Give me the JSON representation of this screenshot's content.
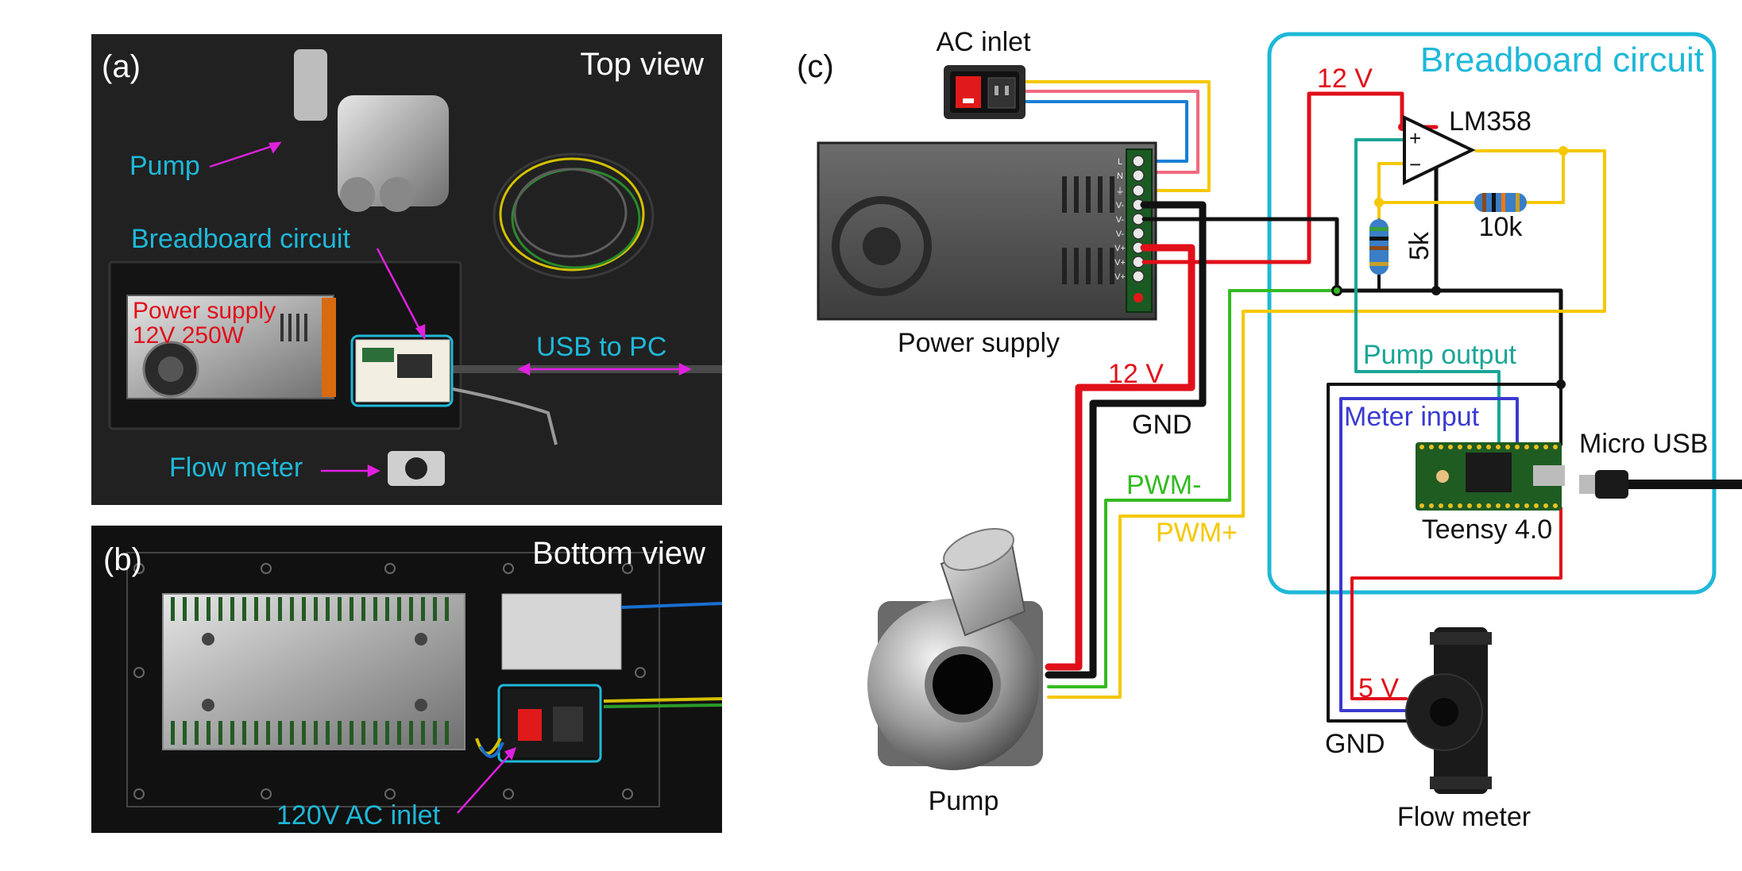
{
  "panel_a": {
    "tag": "(a)",
    "view_title": "Top view",
    "labels": {
      "pump": "Pump",
      "breadboard": "Breadboard circuit",
      "power_supply_line1": "Power supply",
      "power_supply_line2": "12V 250W",
      "usb": "USB to PC",
      "flow_meter": "Flow meter"
    }
  },
  "panel_b": {
    "tag": "(b)",
    "view_title": "Bottom view",
    "labels": {
      "ac_inlet": "120V AC inlet"
    }
  },
  "panel_c": {
    "tag": "(c)",
    "components": {
      "ac_inlet": "AC inlet",
      "power_supply": "Power supply",
      "breadboard_title": "Breadboard circuit",
      "opamp": "LM358",
      "opamp_plus": "+",
      "opamp_minus": "−",
      "resistor_5k": "5k",
      "resistor_10k": "10k",
      "teensy": "Teensy 4.0",
      "micro_usb": "Micro USB",
      "pump": "Pump",
      "flow_meter": "Flow meter"
    },
    "terminals": [
      "L",
      "N",
      "⏚",
      "V-",
      "V-",
      "V-",
      "V+",
      "V+",
      "V+"
    ],
    "wire_labels": {
      "v12_top": "12 V",
      "v12_left": "12 V",
      "gnd_left": "GND",
      "pwm_minus": "PWM-",
      "pwm_plus": "PWM+",
      "pump_output": "Pump output",
      "meter_input": "Meter input",
      "v5": "5 V",
      "gnd_bottom": "GND"
    },
    "colors": {
      "red_wire": "#e0101a",
      "black_wire": "#111111",
      "green_wire": "#33bb22",
      "yellow_wire": "#f5c800",
      "teal_wire": "#1aa596",
      "blue_wire": "#3a3ad0",
      "ac_blue": "#1a7fd6",
      "ac_pink": "#f06a80",
      "box_cyan": "#1eb8d8",
      "label_cyan": "#1eb8d8",
      "label_red": "#e0101a",
      "label_magenta": "#e020e0"
    }
  }
}
